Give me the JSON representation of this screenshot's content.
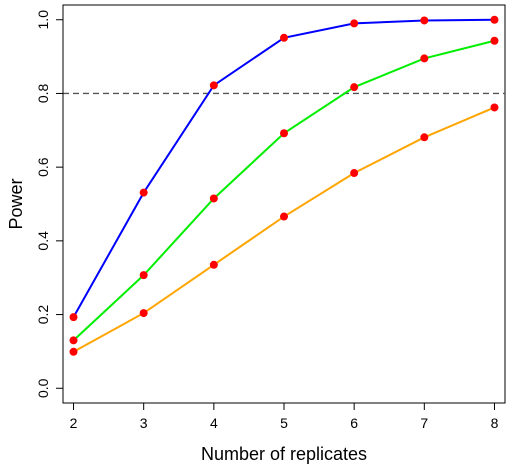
{
  "chart_data": {
    "type": "line",
    "title": "",
    "xlabel": "Number of replicates",
    "ylabel": "Power",
    "x": [
      2,
      3,
      4,
      5,
      6,
      7,
      8
    ],
    "x_ticks": [
      "2",
      "3",
      "4",
      "5",
      "6",
      "7",
      "8"
    ],
    "y_ticks": [
      "0.0",
      "0.2",
      "0.4",
      "0.6",
      "0.8",
      "1.0"
    ],
    "xlim": [
      1.85,
      8.15
    ],
    "ylim": [
      -0.04,
      1.04
    ],
    "grid": false,
    "reference_line": {
      "y": 0.8,
      "style": "dashed",
      "color": "#555555"
    },
    "marker_color": "#ff0000",
    "series": [
      {
        "color": "#0000ff",
        "values": [
          0.193,
          0.531,
          0.822,
          0.951,
          0.99,
          0.998,
          1.0
        ]
      },
      {
        "color": "#00ee00",
        "values": [
          0.13,
          0.307,
          0.515,
          0.692,
          0.817,
          0.895,
          0.943
        ]
      },
      {
        "color": "#ffa500",
        "values": [
          0.099,
          0.204,
          0.335,
          0.466,
          0.584,
          0.681,
          0.762
        ]
      }
    ]
  }
}
